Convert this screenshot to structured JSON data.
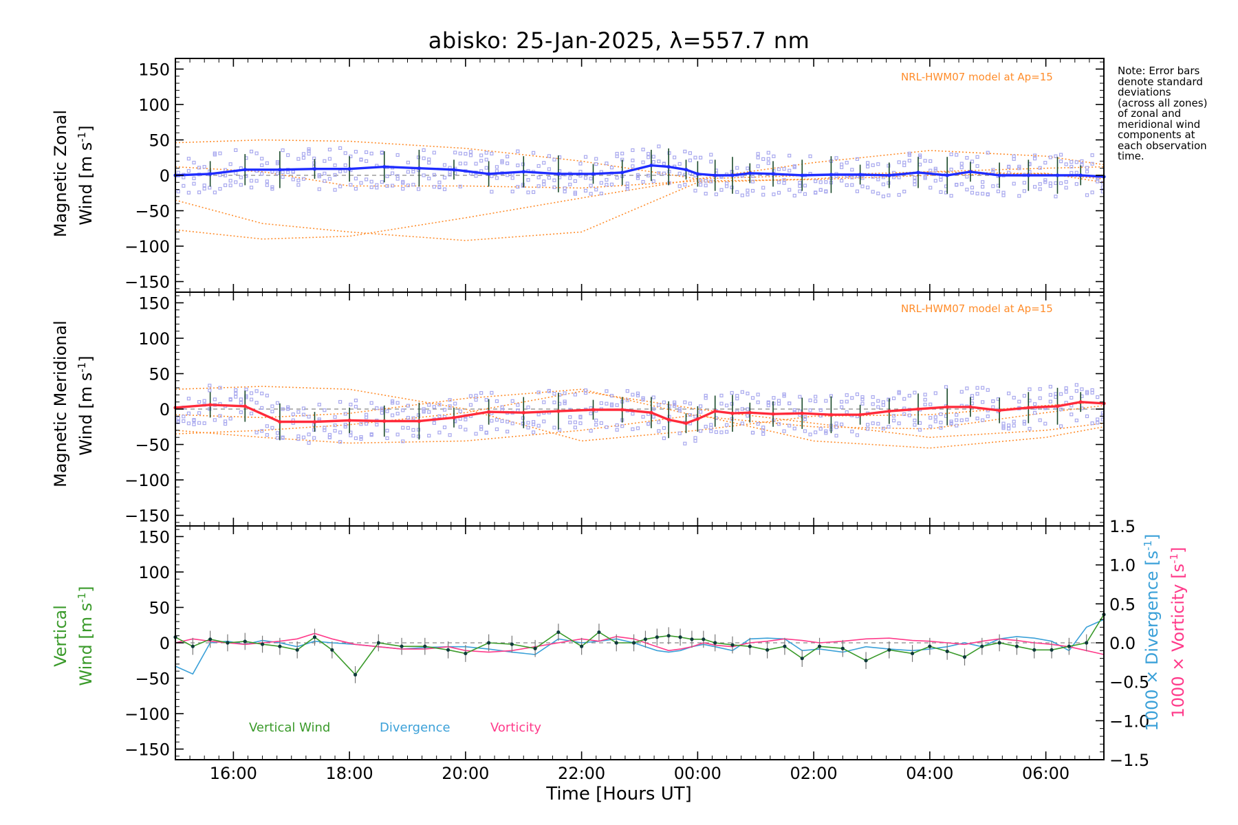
{
  "title": "abisko: 25-Jan-2025, λ=557.7 nm",
  "note": "Note: Error bars\ndenote standard\ndeviations\n(across all zones)\nof zonal and\nmeridional wind\ncomponents at\neach observation\ntime.",
  "model_label": "NRL-HWM07 model at Ap=15",
  "xlabel": "Time [Hours UT]",
  "colors": {
    "zonal": "#1e2cff",
    "meridional": "#ff2a3a",
    "model": "#ff8c2a",
    "zone_points": "#a8a8ee",
    "vertical": "#3a9a2a",
    "divergence": "#3aa0d8",
    "vorticity": "#ff3a8a"
  },
  "legend": {
    "vertical": "Vertical Wind",
    "divergence": "Divergence",
    "vorticity": "Vorticity"
  },
  "chart_data": [
    {
      "type": "line",
      "panel": "zonal",
      "ylabel_line1": "Magnetic Zonal",
      "ylabel_line2": "Wind [m s",
      "ylabel_sup": "-1",
      "ylabel_end": "]",
      "ylim": [
        -165,
        165
      ],
      "yticks": [
        -150,
        -100,
        -50,
        0,
        50,
        100,
        150
      ],
      "xlim": [
        15.0,
        31.0
      ],
      "series": [
        {
          "name": "Magnetic Zonal Wind",
          "x": [
            15.0,
            15.6,
            16.2,
            16.8,
            17.4,
            18.0,
            18.6,
            19.2,
            19.8,
            20.4,
            21.0,
            21.6,
            22.2,
            22.7,
            23.2,
            23.5,
            23.8,
            24.0,
            24.3,
            24.6,
            24.9,
            25.3,
            25.8,
            26.3,
            26.8,
            27.3,
            27.8,
            28.3,
            28.7,
            29.2,
            29.7,
            30.2,
            30.6,
            31.0
          ],
          "y": [
            0,
            2,
            8,
            8,
            9,
            9,
            12,
            10,
            8,
            2,
            5,
            2,
            2,
            4,
            14,
            12,
            8,
            2,
            0,
            0,
            3,
            2,
            0,
            1,
            1,
            0,
            4,
            0,
            5,
            0,
            0,
            0,
            0,
            -2
          ]
        },
        {
          "name": "NRL-HWM07 model at Ap=15",
          "style": "model",
          "curves": [
            {
              "x": [
                15.0,
                16.5,
                18.0,
                20.0,
                22.0,
                24.0,
                26.0,
                28.0,
                30.0,
                31.0
              ],
              "y": [
                46,
                50,
                48,
                38,
                20,
                -5,
                18,
                35,
                27,
                15
              ]
            },
            {
              "x": [
                15.0,
                16.5,
                18.0,
                20.0,
                22.0,
                24.0,
                26.0,
                28.0,
                30.0,
                31.0
              ],
              "y": [
                -77,
                -90,
                -86,
                -60,
                -32,
                -5,
                0,
                5,
                10,
                12
              ]
            },
            {
              "x": [
                15.0,
                16.5,
                18.0,
                20.0,
                22.0,
                24.0,
                26.0,
                28.0,
                30.0,
                31.0
              ],
              "y": [
                -35,
                -68,
                -80,
                -92,
                -80,
                -10,
                -5,
                5,
                2,
                -5
              ]
            },
            {
              "x": [
                15.0,
                16.5,
                18.0,
                20.0,
                22.0,
                24.0,
                26.0,
                28.0,
                30.0,
                31.0
              ],
              "y": [
                12,
                5,
                -15,
                -15,
                -18,
                -8,
                -6,
                0,
                3,
                -10
              ]
            }
          ]
        }
      ]
    },
    {
      "type": "line",
      "panel": "meridional",
      "ylabel_line1": "Magnetic Meridional",
      "ylabel_line2": "Wind [m s",
      "ylabel_sup": "-1",
      "ylabel_end": "]",
      "ylim": [
        -165,
        165
      ],
      "yticks": [
        -150,
        -100,
        -50,
        0,
        50,
        100,
        150
      ],
      "xlim": [
        15.0,
        31.0
      ],
      "series": [
        {
          "name": "Magnetic Meridional Wind",
          "x": [
            15.0,
            15.6,
            16.2,
            16.8,
            17.4,
            18.0,
            18.6,
            19.2,
            19.8,
            20.4,
            21.0,
            21.6,
            22.2,
            22.7,
            23.2,
            23.5,
            23.8,
            24.0,
            24.3,
            24.6,
            24.9,
            25.3,
            25.8,
            26.3,
            26.8,
            27.3,
            27.8,
            28.3,
            28.7,
            29.2,
            29.7,
            30.2,
            30.6,
            31.0
          ],
          "y": [
            2,
            6,
            4,
            -18,
            -18,
            -16,
            -17,
            -17,
            -12,
            -4,
            -5,
            -3,
            -1,
            -1,
            -5,
            -15,
            -20,
            -14,
            -3,
            -6,
            -5,
            -7,
            -6,
            -8,
            -8,
            -3,
            0,
            3,
            3,
            -2,
            2,
            4,
            10,
            8
          ]
        },
        {
          "name": "NRL-HWM07 model at Ap=15",
          "style": "model",
          "curves": [
            {
              "x": [
                15.0,
                16.5,
                18.0,
                20.0,
                22.0,
                24.0,
                26.0,
                28.0,
                30.0,
                31.0
              ],
              "y": [
                -35,
                -30,
                -22,
                -5,
                25,
                0,
                -20,
                -40,
                -30,
                -20
              ]
            },
            {
              "x": [
                15.0,
                16.5,
                18.0,
                20.0,
                22.0,
                24.0,
                26.0,
                28.0,
                30.0,
                31.0
              ],
              "y": [
                28,
                32,
                28,
                0,
                -45,
                -30,
                -10,
                -8,
                5,
                10
              ]
            },
            {
              "x": [
                15.0,
                16.5,
                18.0,
                20.0,
                22.0,
                24.0,
                26.0,
                28.0,
                30.0,
                31.0
              ],
              "y": [
                -30,
                -40,
                -48,
                -45,
                -30,
                -8,
                -45,
                -55,
                -40,
                -25
              ]
            },
            {
              "x": [
                15.0,
                16.5,
                18.0,
                20.0,
                22.0,
                24.0,
                26.0,
                28.0,
                30.0,
                31.0
              ],
              "y": [
                -8,
                -12,
                -6,
                15,
                28,
                -10,
                -25,
                -28,
                -5,
                5
              ]
            }
          ]
        }
      ]
    },
    {
      "type": "line",
      "panel": "vertical",
      "ylabel_line1": "Vertical",
      "ylabel_line2": "Wind [m s",
      "ylabel_sup": "-1",
      "ylabel_end": "]",
      "ylim": [
        -165,
        165
      ],
      "yticks": [
        -150,
        -100,
        -50,
        0,
        50,
        100,
        150
      ],
      "xlim": [
        15.0,
        31.0
      ],
      "y2label_div": "1000 × Divergence [s",
      "y2label_vor": "1000 × Vorticity [s",
      "y2label_sup": "-1",
      "y2label_end": "]",
      "y2lim": [
        -1.5,
        1.5
      ],
      "y2ticks": [
        -1.5,
        -1.0,
        -0.5,
        0.0,
        0.5,
        1.0,
        1.5
      ],
      "y2ticklabels": [
        "−1.5",
        "−1.0",
        "−0.5",
        "0.0",
        "0.5",
        "1.0",
        "1.5"
      ],
      "series": [
        {
          "name": "Vertical Wind",
          "axis": "left",
          "x": [
            15.0,
            15.3,
            15.6,
            15.9,
            16.2,
            16.5,
            16.8,
            17.1,
            17.4,
            17.7,
            18.1,
            18.5,
            18.9,
            19.3,
            19.7,
            20.0,
            20.4,
            20.8,
            21.2,
            21.6,
            22.0,
            22.3,
            22.6,
            22.9,
            23.1,
            23.3,
            23.5,
            23.7,
            23.9,
            24.1,
            24.3,
            24.6,
            24.9,
            25.2,
            25.5,
            25.8,
            26.1,
            26.5,
            26.9,
            27.3,
            27.7,
            28.0,
            28.3,
            28.6,
            28.9,
            29.2,
            29.5,
            29.8,
            30.1,
            30.4,
            30.7,
            31.0
          ],
          "y": [
            8,
            -5,
            5,
            0,
            2,
            -2,
            -5,
            -10,
            8,
            -10,
            -45,
            0,
            -5,
            -5,
            -10,
            -15,
            0,
            -2,
            -8,
            15,
            -5,
            15,
            0,
            0,
            5,
            8,
            10,
            8,
            5,
            5,
            0,
            -3,
            -5,
            -10,
            -5,
            -22,
            -5,
            -8,
            -25,
            -10,
            -15,
            -5,
            -12,
            -20,
            -5,
            0,
            -5,
            -10,
            -10,
            -5,
            0,
            40
          ]
        },
        {
          "name": "Divergence",
          "axis": "right",
          "x": [
            15.0,
            15.3,
            15.6,
            15.9,
            16.2,
            16.5,
            16.8,
            17.1,
            17.4,
            17.7,
            18.1,
            18.5,
            18.9,
            19.3,
            19.7,
            20.0,
            20.4,
            20.8,
            21.2,
            21.6,
            22.0,
            22.3,
            22.6,
            22.9,
            23.1,
            23.3,
            23.5,
            23.7,
            23.9,
            24.1,
            24.3,
            24.6,
            24.9,
            25.2,
            25.5,
            25.8,
            26.1,
            26.5,
            26.9,
            27.3,
            27.7,
            28.0,
            28.3,
            28.6,
            28.9,
            29.2,
            29.5,
            29.8,
            30.1,
            30.4,
            30.7,
            31.0
          ],
          "y": [
            -0.3,
            -0.4,
            0.0,
            0.02,
            -0.02,
            0.03,
            0.0,
            -0.05,
            0.02,
            0.0,
            -0.02,
            -0.05,
            -0.08,
            -0.06,
            -0.05,
            -0.05,
            -0.08,
            -0.12,
            -0.15,
            0.05,
            0.0,
            0.02,
            0.05,
            0.0,
            -0.05,
            -0.1,
            -0.12,
            -0.1,
            -0.05,
            -0.02,
            -0.05,
            -0.1,
            0.05,
            0.06,
            0.05,
            -0.1,
            -0.08,
            -0.12,
            -0.05,
            -0.08,
            -0.1,
            -0.08,
            -0.05,
            0.0,
            -0.05,
            0.05,
            0.08,
            0.06,
            0.02,
            -0.1,
            0.2,
            0.3
          ]
        },
        {
          "name": "Vorticity",
          "axis": "right",
          "x": [
            15.0,
            15.3,
            15.6,
            15.9,
            16.2,
            16.5,
            16.8,
            17.1,
            17.4,
            17.7,
            18.1,
            18.5,
            18.9,
            19.3,
            19.7,
            20.0,
            20.4,
            20.8,
            21.2,
            21.6,
            22.0,
            22.3,
            22.6,
            22.9,
            23.1,
            23.3,
            23.5,
            23.7,
            23.9,
            24.1,
            24.3,
            24.6,
            24.9,
            25.2,
            25.5,
            25.8,
            26.1,
            26.5,
            26.9,
            27.3,
            27.7,
            28.0,
            28.3,
            28.6,
            28.9,
            29.2,
            29.5,
            29.8,
            30.1,
            30.4,
            30.7,
            31.0
          ],
          "y": [
            0.0,
            0.05,
            0.02,
            0.0,
            -0.02,
            0.0,
            0.02,
            0.05,
            0.12,
            0.05,
            -0.02,
            -0.05,
            -0.08,
            -0.08,
            -0.05,
            -0.1,
            -0.12,
            -0.1,
            -0.05,
            0.0,
            0.05,
            0.02,
            0.08,
            0.05,
            0.0,
            -0.05,
            -0.1,
            -0.08,
            -0.05,
            0.0,
            -0.03,
            -0.05,
            0.0,
            0.02,
            0.05,
            0.03,
            0.0,
            0.02,
            0.05,
            0.06,
            0.03,
            0.02,
            0.0,
            -0.02,
            0.02,
            0.05,
            0.03,
            0.0,
            -0.02,
            -0.05,
            -0.1,
            -0.15
          ]
        }
      ]
    }
  ],
  "x_ticks": [
    {
      "value": 16,
      "label": "16:00"
    },
    {
      "value": 18,
      "label": "18:00"
    },
    {
      "value": 20,
      "label": "20:00"
    },
    {
      "value": 22,
      "label": "22:00"
    },
    {
      "value": 24,
      "label": "00:00"
    },
    {
      "value": 26,
      "label": "02:00"
    },
    {
      "value": 28,
      "label": "04:00"
    },
    {
      "value": 30,
      "label": "06:00"
    }
  ]
}
